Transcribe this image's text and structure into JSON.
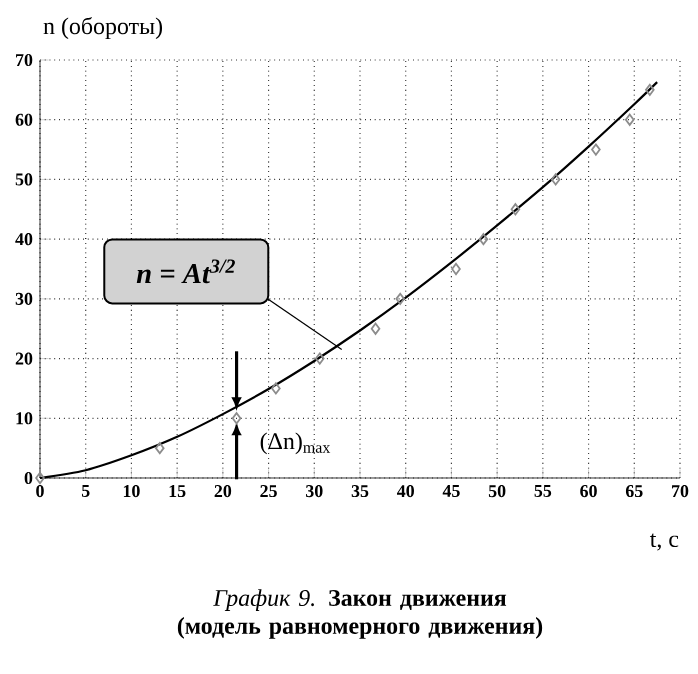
{
  "chart_data": {
    "type": "scatter",
    "title": "*График 9.* **Закон движения (модель равномерного движения)**",
    "xlabel": "t, с",
    "ylabel": "n (обороты)",
    "series": [
      {
        "color": "#8c8c8c",
        "marker": "diamond",
        "x": [
          0,
          13.1,
          21.5,
          25.8,
          30.6,
          36.7,
          39.4,
          45.5,
          48.5,
          52,
          56.4,
          60.8,
          64.5,
          66.7
        ],
        "values": [
          0,
          5,
          10,
          15,
          20,
          25,
          30,
          35,
          40,
          45,
          50,
          55,
          60,
          65
        ]
      },
      {
        "type": "line",
        "color": "#000000",
        "marker": "none",
        "x": [
          0,
          5,
          10,
          15,
          20,
          25,
          30,
          35,
          40,
          45,
          50,
          55,
          60,
          65,
          67.5
        ],
        "values": [
          0,
          1.3,
          3.8,
          6.9,
          10.7,
          14.9,
          19.6,
          24.7,
          30.2,
          36.1,
          42.3,
          48.7,
          55.5,
          62.6,
          66.3
        ]
      }
    ],
    "annotations": [
      {
        "text": "n = At$^{3/2}$",
        "x": 33,
        "y": 21.5
      },
      {
        "text": "(Δn)$_{max}$",
        "x": 21.5,
        "y": 10.5
      }
    ],
    "xlim": [
      0,
      70
    ],
    "ylim": [
      0,
      70
    ],
    "xticks": [
      0,
      5,
      10,
      15,
      20,
      25,
      30,
      35,
      40,
      45,
      50,
      55,
      60,
      65,
      70
    ],
    "yticks": [
      0,
      10,
      20,
      30,
      40,
      50,
      60,
      70
    ],
    "grid": true,
    "line_style": "solid"
  }
}
